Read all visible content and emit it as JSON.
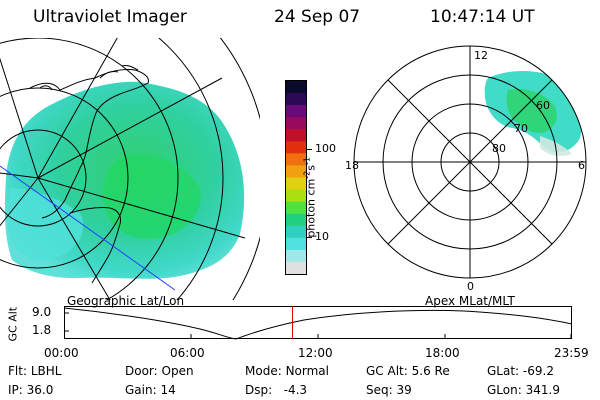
{
  "header": {
    "instrument": "Ultraviolet Imager",
    "date": "24 Sep 07",
    "time": "10:47:14 UT"
  },
  "colorbar": {
    "unit_label": "photon cm",
    "unit_exp1": "-2",
    "unit_s": "s",
    "unit_exp2": "-1",
    "tick_labels": [
      "100",
      "10"
    ],
    "colors": [
      "#0a0a2a",
      "#2b0a55",
      "#6a0a7a",
      "#9a0a5a",
      "#c0102a",
      "#e03010",
      "#f07010",
      "#f0a010",
      "#e0d010",
      "#a8e010",
      "#50e040",
      "#20d080",
      "#30d0c0",
      "#50e0e0",
      "#a0e8e8",
      "#e0e0e0"
    ]
  },
  "left_panel": {
    "caption": "Geographic Lat/Lon"
  },
  "right_panel": {
    "caption": "Apex MLat/MLT",
    "mlt_labels": [
      "12",
      "18",
      "6",
      "0"
    ],
    "lat_labels": [
      "60",
      "70",
      "80"
    ]
  },
  "timeline": {
    "ylabel": "GC Alt",
    "y_ticks": [
      "9.0",
      "1.8"
    ],
    "x_ticks": [
      "00:00",
      "06:00",
      "12:00",
      "18:00",
      "23:59"
    ],
    "current_time_fraction": 0.4497
  },
  "status": {
    "flt_label": "Flt:",
    "flt_value": "LBHL",
    "ip_label": "IP:",
    "ip_value": "36.0",
    "door_label": "Door:",
    "door_value": "Open",
    "gain_label": "Gain:",
    "gain_value": "14",
    "mode_label": "Mode:",
    "mode_value": "Normal",
    "dsp_label": "Dsp:",
    "dsp_value": "-4.3",
    "gcalt_label": "GC Alt:",
    "gcalt_value": "5.6 Re",
    "seq_label": "Seq:",
    "seq_value": "39",
    "glat_label": "GLat:",
    "glat_value": "-69.2",
    "glon_label": "GLon:",
    "glon_value": "341.9"
  }
}
